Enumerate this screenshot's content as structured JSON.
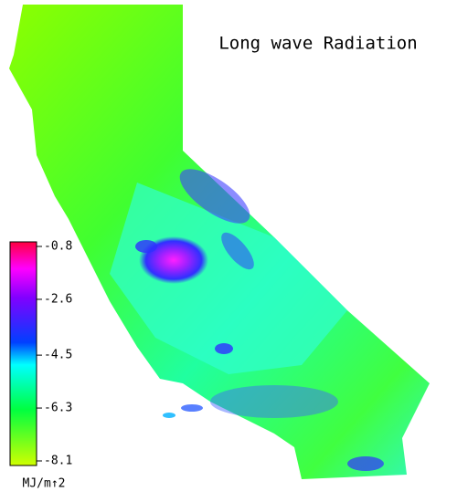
{
  "title": "Long wave Radiation",
  "colorbar": {
    "ticks": [
      -0.8,
      -2.6,
      -4.5,
      -6.3,
      -8.1
    ],
    "label": "MJ/m↑2"
  }
}
